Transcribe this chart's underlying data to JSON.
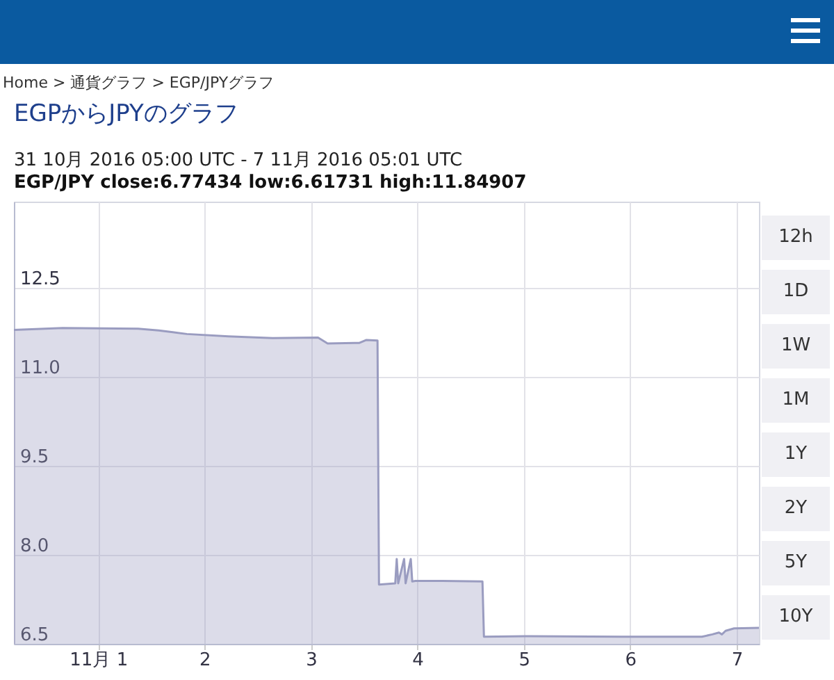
{
  "chart_data": {
    "type": "area",
    "title": "EGPからJPYのグラフ",
    "subtitle": "31 10月 2016 05:00 UTC - 7 11月 2016 05:01 UTC",
    "annotations": [
      "Home > 通貨グラフ > EGP/JPYグラフ",
      "EGP/JPY close:6.77434 low:6.61731 high:11.84907",
      "12h",
      "1D",
      "1W",
      "1M",
      "1Y",
      "2Y",
      "5Y",
      "10Y"
    ],
    "x": [
      "2016-10-31T05:00",
      "2016-10-31T16:00",
      "2016-11-01T09:00",
      "2016-11-01T13:40",
      "2016-11-01T16:50",
      "2016-11-01T20:00",
      "2016-11-02T05:20",
      "2016-11-02T15:20",
      "2016-11-03T01:35",
      "2016-11-03T03:45",
      "2016-11-03T10:55",
      "2016-11-03T12:30",
      "2016-11-03T15:00",
      "2016-11-03T15:20",
      "2016-11-03T19:00",
      "2016-11-03T19:20",
      "2016-11-03T19:40",
      "2016-11-03T21:00",
      "2016-11-03T21:20",
      "2016-11-03T22:30",
      "2016-11-03T22:50",
      "2016-11-03T23:30",
      "2016-11-04T05:40",
      "2016-11-04T14:40",
      "2016-11-04T15:00",
      "2016-11-05T00:20",
      "2016-11-05T22:00",
      "2016-11-06T16:10",
      "2016-11-06T18:30",
      "2016-11-06T20:00",
      "2016-11-06T20:40",
      "2016-11-06T21:30",
      "2016-11-06T23:25",
      "2016-11-07T05:01"
    ],
    "series": [
      {
        "color": "#9a9cc0",
        "values": [
          11.79,
          11.82,
          11.81,
          11.78,
          11.75,
          11.72,
          11.68,
          11.65,
          11.66,
          11.56,
          11.57,
          11.62,
          11.61,
          7.5,
          7.52,
          7.93,
          7.52,
          7.93,
          7.52,
          7.93,
          7.55,
          7.56,
          7.56,
          7.55,
          6.62,
          6.63,
          6.62,
          6.62,
          6.66,
          6.69,
          6.66,
          6.72,
          6.76,
          6.77
        ]
      }
    ],
    "xlim": [
      "2016-10-31T05:00",
      "2016-11-07T05:01"
    ],
    "xticks": [
      {
        "value": "2016-11-01",
        "label": "11月 1"
      },
      {
        "value": "2016-11-02",
        "label": "2"
      },
      {
        "value": "2016-11-03",
        "label": "3"
      },
      {
        "value": "2016-11-04",
        "label": "4"
      },
      {
        "value": "2016-11-05",
        "label": "5"
      },
      {
        "value": "2016-11-06",
        "label": "6"
      },
      {
        "value": "2016-11-07",
        "label": "7"
      }
    ],
    "ylim": [
      6.5,
      13.95
    ],
    "yticks": [
      {
        "value": 6.5,
        "label": "6.5"
      },
      {
        "value": 8,
        "label": "8.0"
      },
      {
        "value": 9.5,
        "label": "9.5"
      },
      {
        "value": 11,
        "label": "11.0"
      },
      {
        "value": 12.5,
        "label": "12.5"
      }
    ],
    "grid": true
  }
}
